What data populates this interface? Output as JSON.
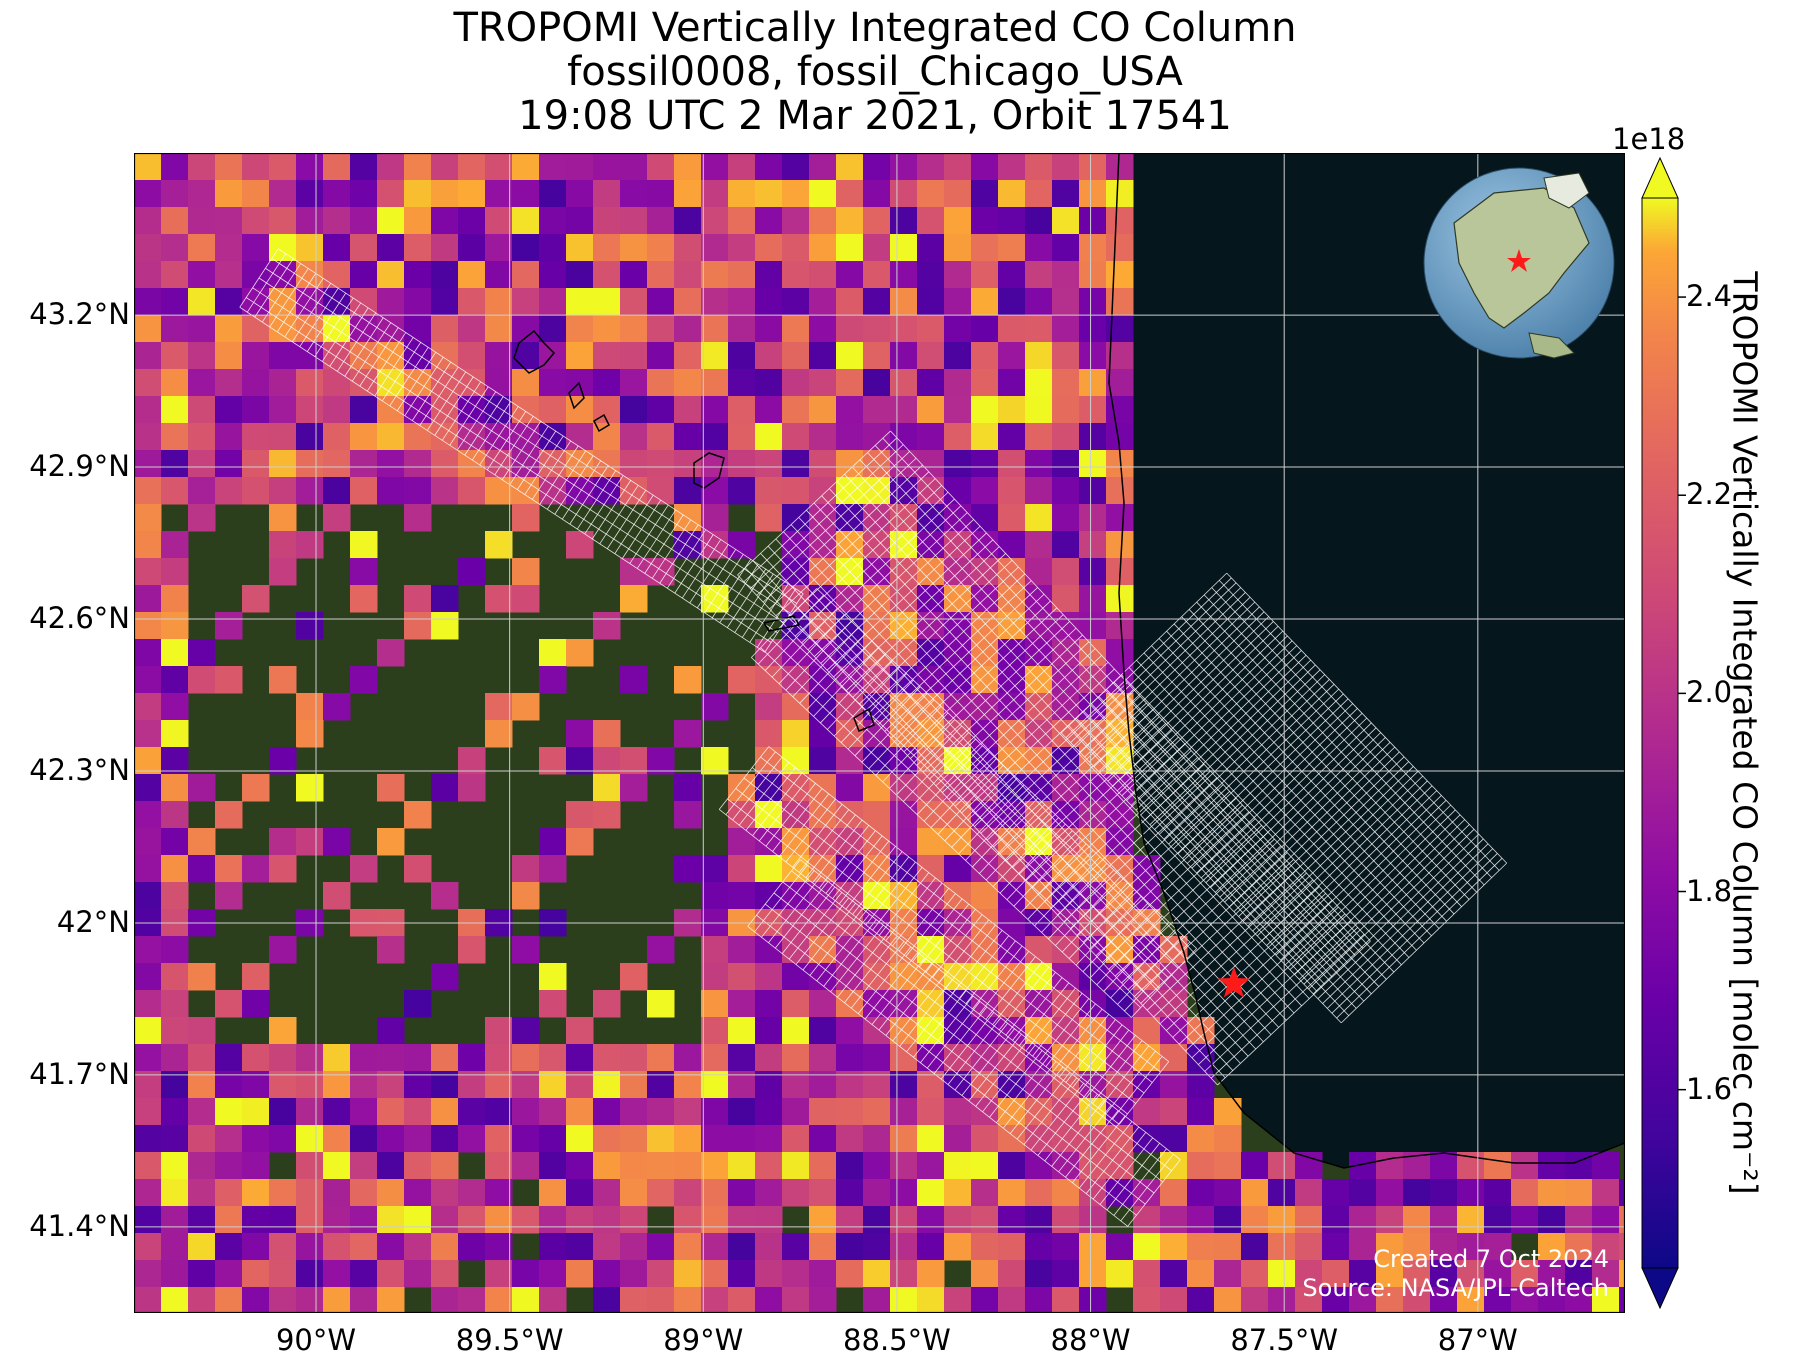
{
  "title": {
    "line1": "TROPOMI Vertically Integrated CO Column",
    "line2": "fossil0008, fossil_Chicago_USA",
    "line3": "19:08 UTC 2 Mar 2021, Orbit 17541"
  },
  "map": {
    "extent": {
      "lon": [
        -90.47,
        -86.62
      ],
      "lat": [
        41.23,
        43.52
      ]
    },
    "lat_ticks": [
      {
        "value": 43.2,
        "label": "43.2°N"
      },
      {
        "value": 42.9,
        "label": "42.9°N"
      },
      {
        "value": 42.6,
        "label": "42.6°N"
      },
      {
        "value": 42.3,
        "label": "42.3°N"
      },
      {
        "value": 42.0,
        "label": "42°N"
      },
      {
        "value": 41.7,
        "label": "41.7°N"
      },
      {
        "value": 41.4,
        "label": "41.4°N"
      }
    ],
    "lon_ticks": [
      {
        "value": -90.0,
        "label": "90°W"
      },
      {
        "value": -89.5,
        "label": "89.5°W"
      },
      {
        "value": -89.0,
        "label": "89°W"
      },
      {
        "value": -88.5,
        "label": "88.5°W"
      },
      {
        "value": -88.0,
        "label": "88°W"
      },
      {
        "value": -87.5,
        "label": "87.5°W"
      },
      {
        "value": -87.0,
        "label": "87°W"
      }
    ],
    "grid": true,
    "target": {
      "name": "fossil_Chicago_USA",
      "lon": -87.63,
      "lat": 41.88,
      "marker": "red-star"
    },
    "colors": {
      "land": "#2c3f1c",
      "water": "#05161c",
      "grid": "#cfcfcf",
      "footprint_outline": "#ffffff",
      "target": "#ff1a1a"
    },
    "inset_globe": {
      "center": "North America",
      "marker": "red-star"
    }
  },
  "colorbar": {
    "label": "TROPOMI Vertically Integrated CO Column [molec cm⁻²]",
    "exponent": "1e18",
    "min": 1.42,
    "max": 2.5,
    "extend": "both",
    "colormap": "plasma",
    "ticks": [
      {
        "value": 1.6,
        "label": "1.6"
      },
      {
        "value": 1.8,
        "label": "1.8"
      },
      {
        "value": 2.0,
        "label": "2.0"
      },
      {
        "value": 2.2,
        "label": "2.2"
      },
      {
        "value": 2.4,
        "label": "2.4"
      }
    ]
  },
  "credit": {
    "created": "Created 7 Oct 2024",
    "source": "Source: NASA/JPL-Caltech"
  }
}
